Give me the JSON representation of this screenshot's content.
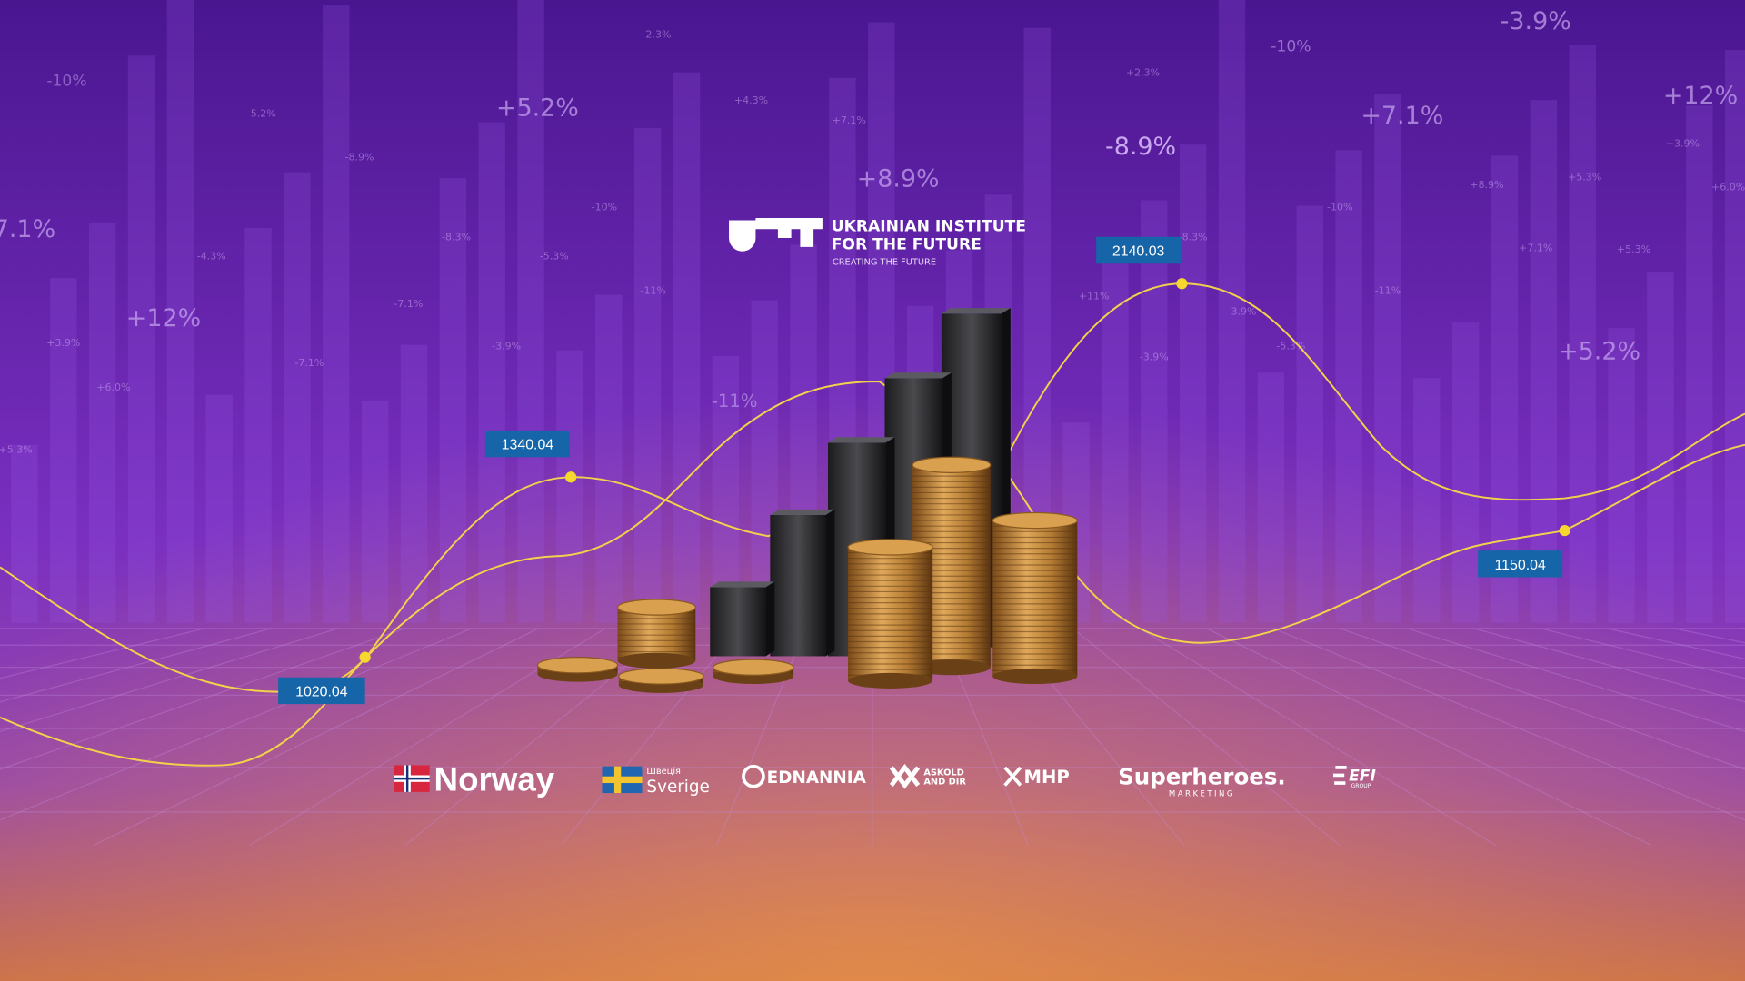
{
  "logo": {
    "title_line_1": "UKRAINIAN INSTITUTE",
    "title_line_2": "FOR THE FUTURE",
    "tagline": "CREATING THE FUTURE"
  },
  "price_labels": [
    "1020.04",
    "1340.04",
    "2140.03",
    "1150.04"
  ],
  "partners": {
    "norway": "Norway",
    "sweden_small": "Швеція",
    "sweden": "Sverige",
    "ednannia": "EDNANNIA",
    "askold_line_1": "ASKOLD",
    "askold_line_2": "AND DIR",
    "mhp": "MHP",
    "superheroes": "Superheroes.",
    "superheroes_sub": "MARKETING",
    "efi": "EFI",
    "efi_sub": "GROUP"
  },
  "background_percentages": [
    "-3.9%",
    "-10%",
    "+12%",
    "+5.2%",
    "+7.1%",
    "-8.9%",
    "+8.9%",
    "7.1%",
    "+12%",
    "+5.2%",
    "-11%",
    "-10%",
    "-2.3%",
    "+4.3%",
    "+7.1%",
    "-5.2%",
    "-8.9%",
    "-10%",
    "-8.3%",
    "-5.3%",
    "-4.3%",
    "-11%",
    "-7.1%",
    "-7.1%",
    "+3.9%",
    "-3.9%",
    "+6.0%",
    "+5.3%",
    "+2.3%",
    "-10%",
    "-8.3%",
    "+11%",
    "-3.9%",
    "-3.9%",
    "-5.3%",
    "-11%",
    "+8.9%",
    "+5.3%",
    "+3.9%",
    "+6.0%",
    "+7.1%",
    "+5.3%"
  ]
}
